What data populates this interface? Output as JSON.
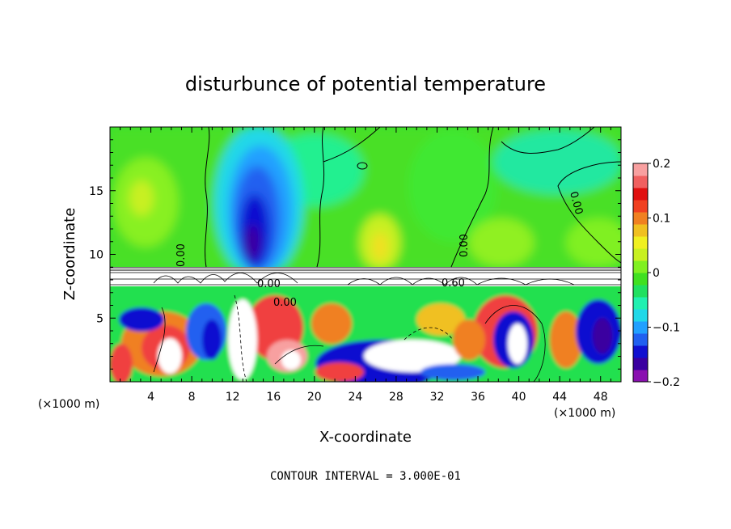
{
  "chart_data": {
    "type": "heatmap",
    "title": "disturbunce of potential temperature",
    "xlabel": "X-coordinate",
    "ylabel": "Z-coordinate",
    "x_unit": "(×1000 m)",
    "z_unit": "(×1000 m)",
    "xlim": [
      0,
      50
    ],
    "ylim": [
      0,
      20
    ],
    "x_ticks": [
      4,
      8,
      12,
      16,
      20,
      24,
      28,
      32,
      36,
      40,
      44,
      48
    ],
    "y_ticks": [
      5,
      10,
      15
    ],
    "colorbar": {
      "min": -0.2,
      "max": 0.2,
      "tick_values": [
        0.2,
        0.1,
        0,
        -0.1,
        -0.2
      ],
      "tick_labels": [
        "0.2",
        "0.1",
        "0",
        "−0.1",
        "−0.2"
      ],
      "colors": [
        "#8a10b0",
        "#3a00a0",
        "#1010d0",
        "#2060f0",
        "#20a0ff",
        "#20d8e8",
        "#20f0b0",
        "#20e060",
        "#40e020",
        "#80f020",
        "#c8f020",
        "#f0f020",
        "#f0c020",
        "#f08020",
        "#f04020",
        "#e01010",
        "#f06060",
        "#f8a0a0"
      ]
    },
    "contour_labels": [
      "0.00",
      "0.00",
      "0.00",
      "0.00",
      "0.00",
      "0.60"
    ],
    "contour_interval_text": "CONTOUR INTERVAL = 3.000E-01"
  }
}
